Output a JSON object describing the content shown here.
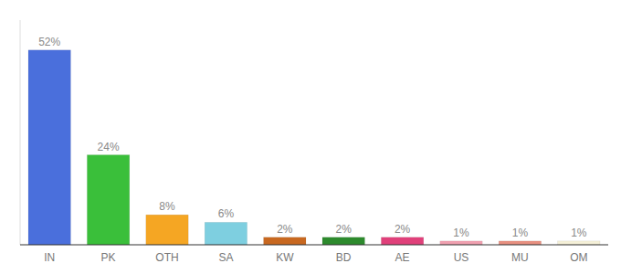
{
  "chart_data": {
    "type": "bar",
    "categories": [
      "IN",
      "PK",
      "OTH",
      "SA",
      "KW",
      "BD",
      "AE",
      "US",
      "MU",
      "OM"
    ],
    "values": [
      52,
      24,
      8,
      6,
      2,
      2,
      2,
      1,
      1,
      1
    ],
    "value_labels": [
      "52%",
      "24%",
      "8%",
      "6%",
      "2%",
      "2%",
      "2%",
      "1%",
      "1%",
      "1%"
    ],
    "colors": [
      "#4a6fdc",
      "#3abf3a",
      "#f5a623",
      "#7ecfe0",
      "#c86820",
      "#2d8a2d",
      "#e0407a",
      "#f0a0b0",
      "#e89080",
      "#f5f0d8"
    ],
    "ylim": [
      0,
      60
    ],
    "data_labels": true,
    "tick_labels": "x",
    "grid": false
  }
}
